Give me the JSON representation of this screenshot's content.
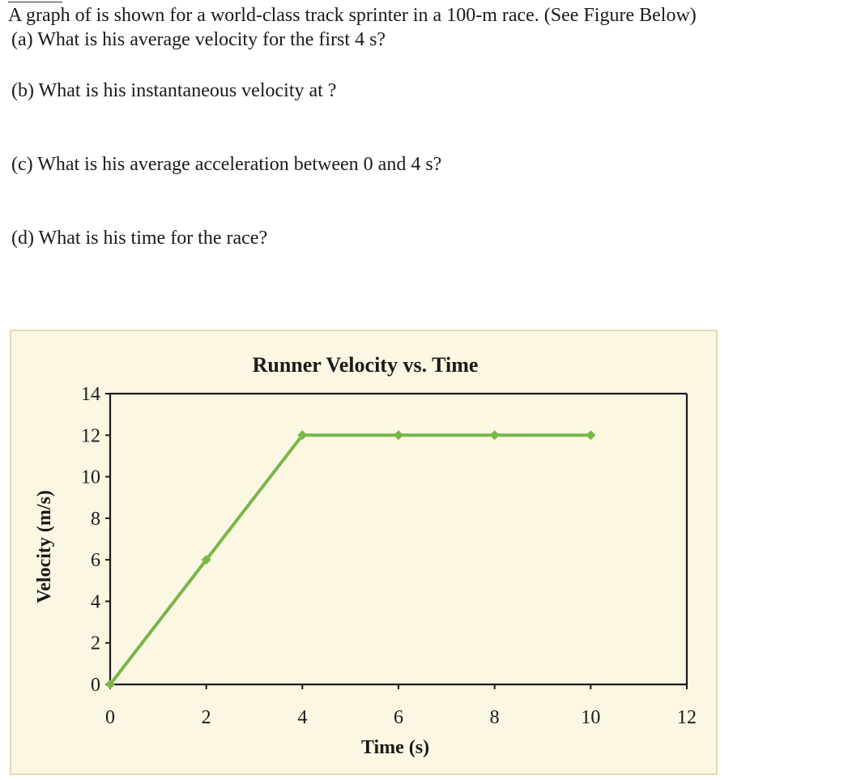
{
  "question": {
    "intro": "A graph of is shown for a world-class track sprinter in a 100-m race. (See Figure Below)",
    "parts": [
      "(a) What is his average velocity for the first 4 s?",
      "(b) What is his instantaneous velocity at ?",
      "(c) What is his average acceleration between 0 and 4 s?",
      "(d) What is his time for the race?"
    ]
  },
  "chart_data": {
    "type": "line",
    "title": "Runner Velocity vs. Time",
    "xlabel": "Time (s)",
    "ylabel": "Velocity (m/s)",
    "xlim": [
      0,
      12
    ],
    "ylim": [
      0,
      14
    ],
    "xticks": [
      0,
      2,
      4,
      6,
      8,
      10,
      12
    ],
    "yticks": [
      0,
      2,
      4,
      6,
      8,
      10,
      12,
      14
    ],
    "grid": false,
    "legend": "none",
    "series": [
      {
        "color": "#7ab648",
        "x": [
          0,
          2,
          4,
          6,
          8,
          10
        ],
        "y": [
          0,
          6,
          12,
          12,
          12,
          12
        ]
      }
    ],
    "colors": {
      "line": "#7ab648",
      "background": "#fbf7e2",
      "border": "#e3d9b4",
      "axis": "#1a1a1a"
    }
  }
}
